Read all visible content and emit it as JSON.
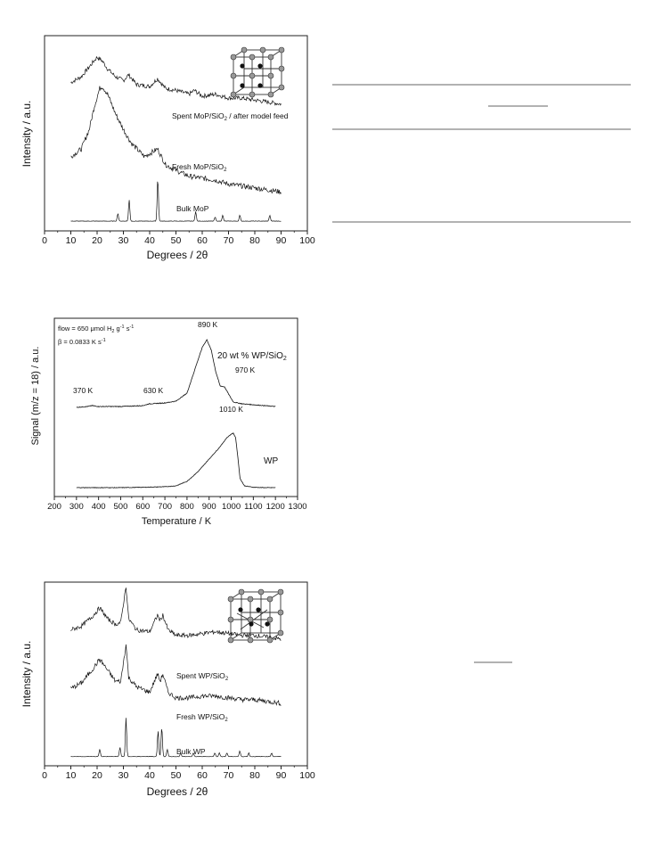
{
  "chart_data": [
    {
      "type": "line",
      "xlabel": "Degrees / 2θ",
      "ylabel": "Intensity / a.u.",
      "xlim": [
        0,
        100
      ],
      "xticks": [
        0,
        10,
        20,
        30,
        40,
        50,
        60,
        70,
        80,
        90,
        100
      ],
      "legend": "none",
      "grid": false,
      "inset": "cubic crystal structure icon (top-right)",
      "series": [
        {
          "name": "Spent MoP/SiO2 / after model feed",
          "label_main": "Spent MoP/SiO",
          "label_sub": "2",
          "label_rest": " / after model feed",
          "x": [
            10,
            14,
            17,
            20,
            22,
            24,
            27,
            30,
            32,
            35,
            40,
            43,
            46,
            50,
            55,
            57,
            60,
            65,
            70,
            75,
            80,
            85,
            90
          ],
          "y": [
            0.76,
            0.79,
            0.84,
            0.89,
            0.87,
            0.83,
            0.79,
            0.77,
            0.8,
            0.75,
            0.74,
            0.78,
            0.73,
            0.72,
            0.7,
            0.72,
            0.69,
            0.7,
            0.68,
            0.68,
            0.67,
            0.66,
            0.65
          ]
        },
        {
          "name": "Fresh MoP/SiO2",
          "label_main": "Fresh MoP/SiO",
          "label_sub": "2",
          "label_rest": "",
          "x": [
            10,
            14,
            17,
            19,
            21,
            22,
            24,
            27,
            30,
            33,
            38,
            43,
            46,
            50,
            55,
            60,
            65,
            70,
            75,
            80,
            85,
            90
          ],
          "y": [
            0.38,
            0.42,
            0.52,
            0.64,
            0.73,
            0.74,
            0.7,
            0.6,
            0.52,
            0.45,
            0.38,
            0.42,
            0.34,
            0.31,
            0.28,
            0.27,
            0.26,
            0.24,
            0.23,
            0.22,
            0.21,
            0.2
          ]
        },
        {
          "name": "Bulk MoP",
          "label_main": "Bulk MoP",
          "label_sub": "",
          "label_rest": "",
          "baseline": 0.05,
          "peaks": [
            [
              27.9,
              0.04
            ],
            [
              32.2,
              0.11
            ],
            [
              43.1,
              0.22
            ],
            [
              57.5,
              0.05
            ],
            [
              64.9,
              0.02
            ],
            [
              67.8,
              0.03
            ],
            [
              74.3,
              0.03
            ],
            [
              85.7,
              0.03
            ]
          ]
        }
      ]
    },
    {
      "type": "line",
      "xlabel": "Temperature / K",
      "ylabel": "Signal (m/z = 18) / a.u.",
      "xlim": [
        200,
        1300
      ],
      "xticks": [
        200,
        300,
        400,
        500,
        600,
        700,
        800,
        900,
        1000,
        1100,
        1200,
        1300
      ],
      "legend": "none",
      "grid": false,
      "conditions": {
        "flow_text": "flow = 650 μmol H",
        "flow_sub": "2",
        "flow_rest": " g",
        "flow_sup1": "-1",
        "flow_tail": " s",
        "flow_sup2": "-1",
        "beta_text": "β = 0.0833 K s",
        "beta_sup": "-1"
      },
      "series": [
        {
          "name": "20 wt % WP/SiO2",
          "label_main": "20 wt % WP/SiO",
          "label_sub": "2",
          "x": [
            300,
            350,
            370,
            400,
            500,
            600,
            630,
            700,
            750,
            800,
            840,
            870,
            890,
            910,
            930,
            950,
            970,
            990,
            1010,
            1050,
            1100,
            1150,
            1200
          ],
          "y": [
            0.5,
            0.505,
            0.51,
            0.505,
            0.505,
            0.51,
            0.52,
            0.525,
            0.535,
            0.58,
            0.73,
            0.84,
            0.88,
            0.82,
            0.7,
            0.62,
            0.615,
            0.57,
            0.53,
            0.52,
            0.515,
            0.51,
            0.505
          ]
        },
        {
          "name": "WP",
          "label_main": "WP",
          "label_sub": "",
          "x": [
            300,
            400,
            500,
            600,
            700,
            750,
            800,
            850,
            900,
            950,
            980,
            1000,
            1010,
            1020,
            1030,
            1040,
            1060,
            1100,
            1150,
            1200
          ],
          "y": [
            0.05,
            0.05,
            0.05,
            0.052,
            0.055,
            0.06,
            0.085,
            0.14,
            0.21,
            0.28,
            0.33,
            0.35,
            0.355,
            0.33,
            0.22,
            0.1,
            0.06,
            0.052,
            0.05,
            0.05
          ]
        }
      ],
      "annotations": [
        "370 K",
        "630 K",
        "890 K",
        "970 K",
        "1010 K"
      ]
    },
    {
      "type": "line",
      "xlabel": "Degrees / 2θ",
      "ylabel": "Intensity / a.u.",
      "xlim": [
        0,
        100
      ],
      "xticks": [
        0,
        10,
        20,
        30,
        40,
        50,
        60,
        70,
        80,
        90,
        100
      ],
      "legend": "none",
      "grid": false,
      "inset": "cubic crystal structure icon (top-right)",
      "series": [
        {
          "name": "Spent WP/SiO2",
          "label_main": "Spent WP/SiO",
          "label_sub": "2",
          "label_rest": "",
          "x": [
            10,
            14,
            18,
            21,
            24,
            27,
            29,
            31,
            32,
            35,
            40,
            43,
            44,
            45,
            47,
            50,
            55,
            60,
            65,
            70,
            75,
            80,
            85,
            90
          ],
          "y": [
            0.74,
            0.76,
            0.81,
            0.86,
            0.8,
            0.77,
            0.78,
            0.98,
            0.8,
            0.74,
            0.73,
            0.82,
            0.79,
            0.82,
            0.74,
            0.71,
            0.71,
            0.72,
            0.73,
            0.72,
            0.71,
            0.71,
            0.7,
            0.69
          ]
        },
        {
          "name": "Fresh WP/SiO2",
          "label_main": "Fresh WP/SiO",
          "label_sub": "2",
          "label_rest": "",
          "x": [
            10,
            14,
            18,
            21,
            24,
            27,
            29,
            31,
            32,
            35,
            40,
            43,
            44,
            45,
            47,
            50,
            55,
            60,
            65,
            70,
            75,
            80,
            85,
            90
          ],
          "y": [
            0.42,
            0.45,
            0.52,
            0.58,
            0.52,
            0.46,
            0.46,
            0.66,
            0.48,
            0.43,
            0.4,
            0.5,
            0.46,
            0.5,
            0.4,
            0.37,
            0.37,
            0.38,
            0.38,
            0.37,
            0.36,
            0.36,
            0.35,
            0.34
          ]
        },
        {
          "name": "Bulk WP",
          "label_main": "Bulk WP",
          "label_sub": "",
          "label_rest": "",
          "baseline": 0.05,
          "peaks": [
            [
              21.0,
              0.04
            ],
            [
              28.7,
              0.05
            ],
            [
              31.0,
              0.21
            ],
            [
              43.2,
              0.14
            ],
            [
              44.6,
              0.16
            ],
            [
              46.7,
              0.04
            ],
            [
              51.8,
              0.02
            ],
            [
              56.6,
              0.02
            ],
            [
              64.8,
              0.02
            ],
            [
              66.5,
              0.02
            ],
            [
              69.4,
              0.02
            ],
            [
              74.3,
              0.03
            ],
            [
              77.7,
              0.02
            ],
            [
              86.4,
              0.02
            ]
          ]
        }
      ]
    }
  ]
}
